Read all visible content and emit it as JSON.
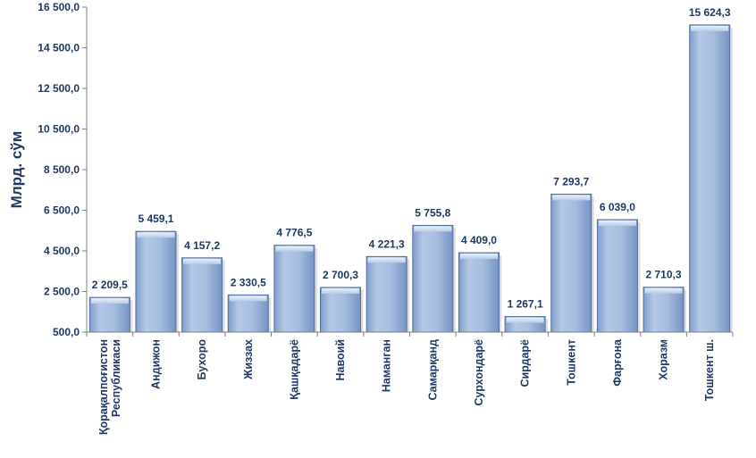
{
  "chart_data": {
    "type": "bar",
    "ylabel": "Млрд. сўм",
    "ylim": [
      500,
      16500
    ],
    "yticks": [
      500,
      2500,
      4500,
      6500,
      8500,
      10500,
      12500,
      14500,
      16500
    ],
    "ytick_labels": [
      "500,0",
      "2 500,0",
      "4 500,0",
      "6 500,0",
      "8 500,0",
      "10 500,0",
      "12 500,0",
      "14 500,0",
      "16 500,0"
    ],
    "categories": [
      [
        "Қорақалпоғистон",
        "Республикаси"
      ],
      [
        "Андижон"
      ],
      [
        "Бухоро"
      ],
      [
        "Жиззах"
      ],
      [
        "Қашқадарё"
      ],
      [
        "Навоий"
      ],
      [
        "Наманган"
      ],
      [
        "Самарқанд"
      ],
      [
        "Сурхондарё"
      ],
      [
        "Сирдарё"
      ],
      [
        "Тошкент"
      ],
      [
        "Фарғона"
      ],
      [
        "Хоразм"
      ],
      [
        "Тошкент ш."
      ]
    ],
    "values": [
      2209.5,
      5459.1,
      4157.2,
      2330.5,
      4776.5,
      2700.3,
      4221.3,
      5755.8,
      4409.0,
      1267.1,
      7293.7,
      6039.0,
      2710.3,
      15624.3
    ],
    "value_labels": [
      "2 209,5",
      "5 459,1",
      "4 157,2",
      "2 330,5",
      "4 776,5",
      "2 700,3",
      "4 221,3",
      "5 755,8",
      "4 409,0",
      "1 267,1",
      "7 293,7",
      "6 039,0",
      "2 710,3",
      "15 624,3"
    ],
    "bar_color": "#9db5da",
    "bar_edge_color": "#4f6fa0",
    "text_color": "#1f3864",
    "grid": false,
    "legend": "none"
  }
}
